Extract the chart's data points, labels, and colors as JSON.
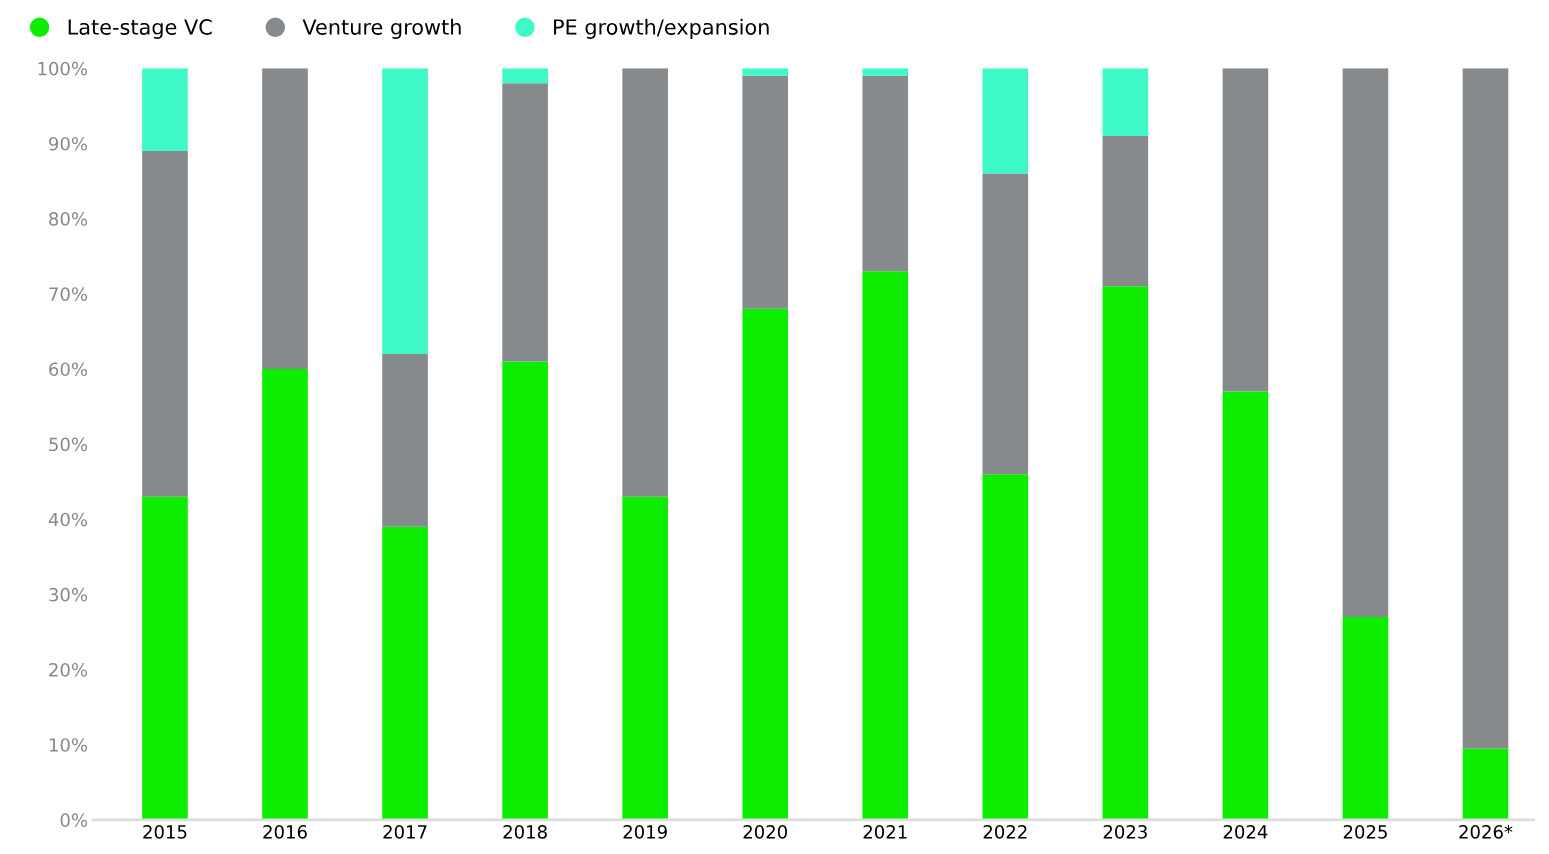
{
  "chart_data": {
    "type": "bar",
    "stacked": true,
    "categories": [
      "2015",
      "2016",
      "2017",
      "2018",
      "2019",
      "2020",
      "2021",
      "2022",
      "2023",
      "2024",
      "2025",
      "2026*"
    ],
    "series": [
      {
        "name": "Late-stage VC",
        "color": "#0ded00",
        "values": [
          43,
          60,
          39,
          61,
          43,
          68,
          73,
          46,
          71,
          57,
          27,
          9.5
        ]
      },
      {
        "name": "Venture growth",
        "color": "#878a8d",
        "values": [
          46,
          40,
          23,
          37,
          57,
          31,
          26,
          40,
          20,
          43,
          73,
          90.5
        ]
      },
      {
        "name": "PE growth/expansion",
        "color": "#3ef8c8",
        "values": [
          11,
          null,
          38,
          2,
          null,
          1,
          1,
          14,
          9,
          null,
          null,
          null
        ]
      }
    ],
    "ylim": [
      0,
      100
    ],
    "yticks": [
      {
        "value": 0,
        "label": "0%"
      },
      {
        "value": 10,
        "label": "10%"
      },
      {
        "value": 20,
        "label": "20%"
      },
      {
        "value": 30,
        "label": "30%"
      },
      {
        "value": 40,
        "label": "40%"
      },
      {
        "value": 50,
        "label": "50%"
      },
      {
        "value": 60,
        "label": "60%"
      },
      {
        "value": 70,
        "label": "70%"
      },
      {
        "value": 80,
        "label": "80%"
      },
      {
        "value": 90,
        "label": "90%"
      },
      {
        "value": 100,
        "label": "100%"
      }
    ],
    "legend": "top left",
    "marker": "circle"
  }
}
